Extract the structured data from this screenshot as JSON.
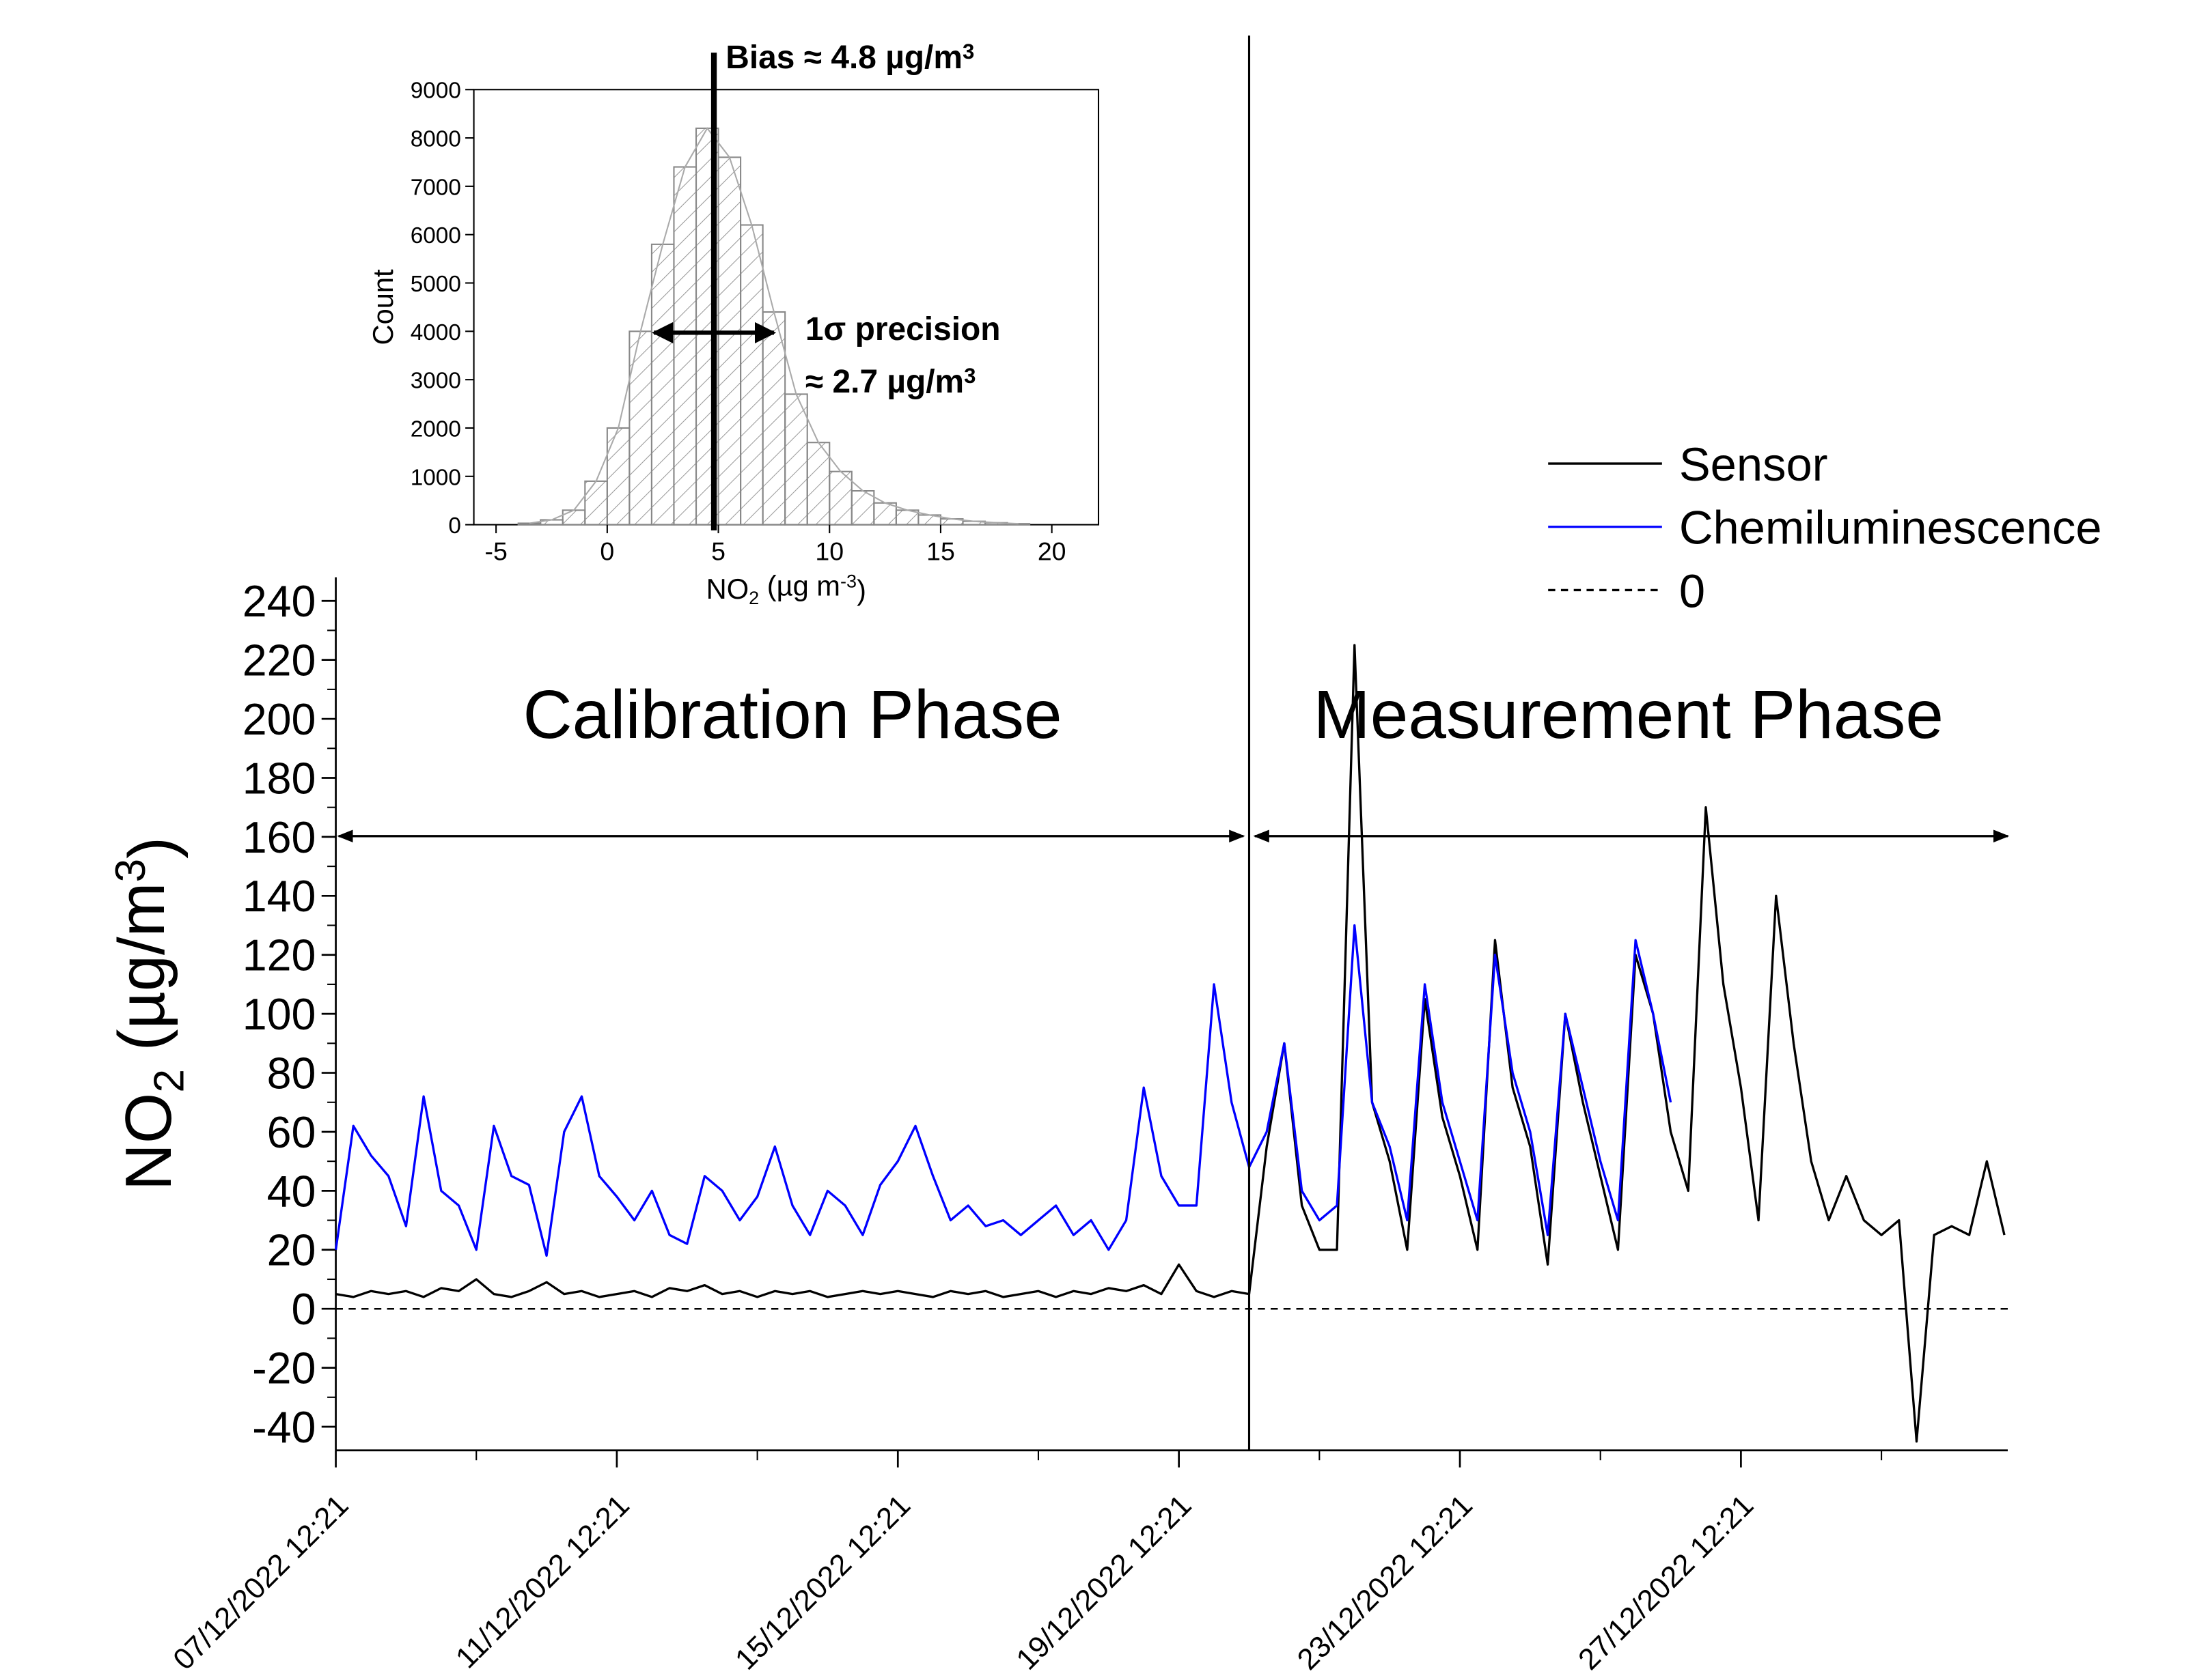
{
  "chart_data": [
    {
      "type": "line",
      "ylabel": [
        {
          "text": "NO"
        },
        {
          "text": "2",
          "shift": "sub"
        },
        {
          "text": " (µg/m"
        },
        {
          "text": "3",
          "shift": "super"
        },
        {
          "text": ")"
        }
      ],
      "annotations": [
        "Calibration Phase",
        "Measurement Phase"
      ],
      "phase_split": "2022-12-20T12:21",
      "x": [
        "2022-12-07T12:21",
        "2022-12-07T18:21",
        "2022-12-08T00:21",
        "2022-12-08T06:21",
        "2022-12-08T12:21",
        "2022-12-08T18:21",
        "2022-12-09T00:21",
        "2022-12-09T06:21",
        "2022-12-09T12:21",
        "2022-12-09T18:21",
        "2022-12-10T00:21",
        "2022-12-10T06:21",
        "2022-12-10T12:21",
        "2022-12-10T18:21",
        "2022-12-11T00:21",
        "2022-12-11T06:21",
        "2022-12-11T12:21",
        "2022-12-11T18:21",
        "2022-12-12T00:21",
        "2022-12-12T06:21",
        "2022-12-12T12:21",
        "2022-12-12T18:21",
        "2022-12-13T00:21",
        "2022-12-13T06:21",
        "2022-12-13T12:21",
        "2022-12-13T18:21",
        "2022-12-14T00:21",
        "2022-12-14T06:21",
        "2022-12-14T12:21",
        "2022-12-14T18:21",
        "2022-12-15T00:21",
        "2022-12-15T06:21",
        "2022-12-15T12:21",
        "2022-12-15T18:21",
        "2022-12-16T00:21",
        "2022-12-16T06:21",
        "2022-12-16T12:21",
        "2022-12-16T18:21",
        "2022-12-17T00:21",
        "2022-12-17T06:21",
        "2022-12-17T12:21",
        "2022-12-17T18:21",
        "2022-12-18T00:21",
        "2022-12-18T06:21",
        "2022-12-18T12:21",
        "2022-12-18T18:21",
        "2022-12-19T00:21",
        "2022-12-19T06:21",
        "2022-12-19T12:21",
        "2022-12-19T18:21",
        "2022-12-20T00:21",
        "2022-12-20T06:21",
        "2022-12-20T12:21",
        "2022-12-20T18:21",
        "2022-12-21T00:21",
        "2022-12-21T06:21",
        "2022-12-21T12:21",
        "2022-12-21T18:21",
        "2022-12-22T00:21",
        "2022-12-22T06:21",
        "2022-12-22T12:21",
        "2022-12-22T18:21",
        "2022-12-23T00:21",
        "2022-12-23T06:21",
        "2022-12-23T12:21",
        "2022-12-23T18:21",
        "2022-12-24T00:21",
        "2022-12-24T06:21",
        "2022-12-24T12:21",
        "2022-12-24T18:21",
        "2022-12-25T00:21",
        "2022-12-25T06:21",
        "2022-12-25T12:21",
        "2022-12-25T18:21",
        "2022-12-26T00:21",
        "2022-12-26T06:21",
        "2022-12-26T12:21",
        "2022-12-26T18:21",
        "2022-12-27T00:21",
        "2022-12-27T06:21",
        "2022-12-27T12:21",
        "2022-12-27T18:21",
        "2022-12-28T00:21",
        "2022-12-28T06:21",
        "2022-12-28T12:21",
        "2022-12-28T18:21",
        "2022-12-29T00:21",
        "2022-12-29T06:21",
        "2022-12-29T12:21",
        "2022-12-29T18:21",
        "2022-12-30T00:21",
        "2022-12-30T06:21",
        "2022-12-30T12:21",
        "2022-12-30T18:21",
        "2022-12-31T00:21",
        "2022-12-31T06:21"
      ],
      "series": [
        {
          "name": "Sensor",
          "color": "#000000",
          "values": [
            5,
            4,
            6,
            5,
            6,
            4,
            7,
            6,
            10,
            5,
            4,
            6,
            9,
            5,
            6,
            4,
            5,
            6,
            4,
            7,
            6,
            8,
            5,
            6,
            4,
            6,
            5,
            6,
            4,
            5,
            6,
            5,
            6,
            5,
            4,
            6,
            5,
            6,
            4,
            5,
            6,
            4,
            6,
            5,
            7,
            6,
            8,
            5,
            15,
            6,
            4,
            6,
            5,
            55,
            90,
            35,
            20,
            20,
            225,
            70,
            50,
            20,
            105,
            65,
            45,
            20,
            125,
            75,
            55,
            15,
            100,
            70,
            45,
            20,
            120,
            100,
            60,
            40,
            170,
            110,
            75,
            30,
            140,
            90,
            50,
            30,
            45,
            30,
            25,
            30,
            -45,
            25,
            28,
            25,
            50,
            25
          ]
        },
        {
          "name": "Chemiluminescence",
          "color": "#0000ff",
          "values": [
            20,
            62,
            52,
            45,
            28,
            72,
            40,
            35,
            20,
            62,
            45,
            42,
            18,
            60,
            72,
            45,
            38,
            30,
            40,
            25,
            22,
            45,
            40,
            30,
            38,
            55,
            35,
            25,
            40,
            35,
            25,
            42,
            50,
            62,
            45,
            30,
            35,
            28,
            30,
            25,
            30,
            35,
            25,
            30,
            20,
            30,
            75,
            45,
            35,
            35,
            110,
            70,
            48,
            60,
            90,
            40,
            30,
            35,
            130,
            70,
            55,
            30,
            110,
            70,
            50,
            30,
            120,
            80,
            60,
            25,
            100,
            75,
            50,
            30,
            125,
            100,
            70,
            null,
            null,
            null,
            null,
            null,
            null,
            null,
            null,
            null,
            null,
            null,
            null,
            null,
            null,
            null,
            null,
            null,
            null,
            null
          ]
        }
      ],
      "hlines": [
        {
          "name": "0",
          "value": 0,
          "style": "dashed",
          "color": "#000000"
        }
      ],
      "xlim": [
        "2022-12-07T12:21",
        "2022-12-31T07:30"
      ],
      "xticks": [
        {
          "value": "2022-12-07T12:21",
          "label": "07/12/2022 12:21"
        },
        {
          "value": "2022-12-11T12:21",
          "label": "11/12/2022 12:21"
        },
        {
          "value": "2022-12-15T12:21",
          "label": "15/12/2022 12:21"
        },
        {
          "value": "2022-12-19T12:21",
          "label": "19/12/2022 12:21"
        },
        {
          "value": "2022-12-23T12:21",
          "label": "23/12/2022 12:21"
        },
        {
          "value": "2022-12-27T12:21",
          "label": "27/12/2022 12:21"
        }
      ],
      "xminorticks": [
        "2022-12-09T12:21",
        "2022-12-13T12:21",
        "2022-12-17T12:21",
        "2022-12-21T12:21",
        "2022-12-25T12:21",
        "2022-12-29T12:21"
      ],
      "ylim": [
        -48,
        248
      ],
      "yticks": [
        -40,
        -20,
        0,
        20,
        40,
        60,
        80,
        100,
        120,
        140,
        160,
        180,
        200,
        220,
        240
      ],
      "yminorticks": [
        -30,
        -10,
        10,
        30,
        50,
        70,
        90,
        110,
        130,
        150,
        170,
        190,
        210,
        230
      ]
    },
    {
      "type": "histogram",
      "xlabel": [
        {
          "text": "NO"
        },
        {
          "text": "2",
          "shift": "sub"
        },
        {
          "text": " (µg m"
        },
        {
          "text": "-3",
          "shift": "super"
        },
        {
          "text": ")"
        }
      ],
      "ylabel": "Count",
      "bins": [
        -4,
        -3,
        -2,
        -1,
        0,
        1,
        2,
        3,
        4,
        5,
        6,
        7,
        8,
        9,
        10,
        11,
        12,
        13,
        14,
        15,
        16,
        17,
        18,
        19
      ],
      "counts": [
        30,
        100,
        300,
        900,
        2000,
        4000,
        5800,
        7400,
        8200,
        7600,
        6200,
        4400,
        2700,
        1700,
        1100,
        700,
        450,
        300,
        200,
        120,
        70,
        40,
        20
      ],
      "color": "#888888",
      "bias": 4.8,
      "precision": 2.7,
      "bias_label": [
        {
          "text": "Bias  ≈ 4.8 µg/m"
        },
        {
          "text": "3",
          "shift": "super"
        }
      ],
      "precision_label": [
        {
          "text": "1σ precision"
        }
      ],
      "precision_value_label": [
        {
          "text": "≈ 2.7 µg/m"
        },
        {
          "text": "3",
          "shift": "super"
        }
      ],
      "xlim": [
        -6,
        22.1
      ],
      "xticks": [
        -5,
        0,
        5,
        10,
        15,
        20
      ],
      "ylim": [
        0,
        9000
      ],
      "yticks": [
        0,
        1000,
        2000,
        3000,
        4000,
        5000,
        6000,
        7000,
        8000,
        9000
      ]
    }
  ]
}
